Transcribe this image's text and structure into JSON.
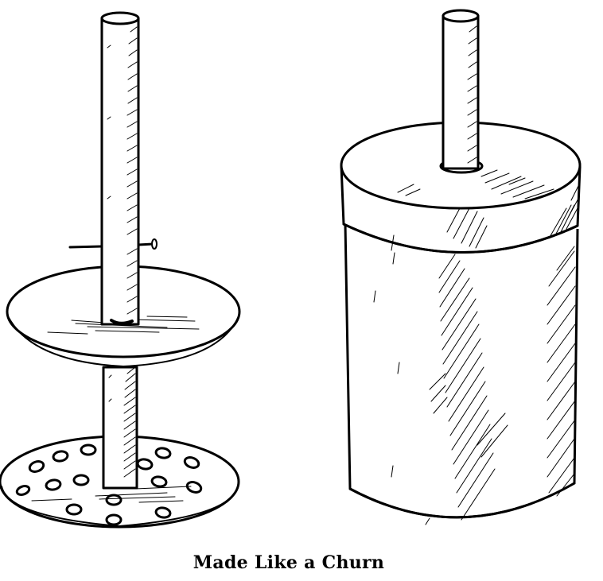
{
  "figure": {
    "caption": "Made Like a Churn",
    "parts": [
      {
        "name": "dasher",
        "pieces": [
          "handle-rod",
          "nail",
          "upper-disk",
          "perforated-disk"
        ]
      },
      {
        "name": "churn-container",
        "pieces": [
          "cylinder",
          "lid",
          "handle-rod"
        ]
      }
    ],
    "ink_color": "#000000",
    "paper_color": "#ffffff"
  }
}
